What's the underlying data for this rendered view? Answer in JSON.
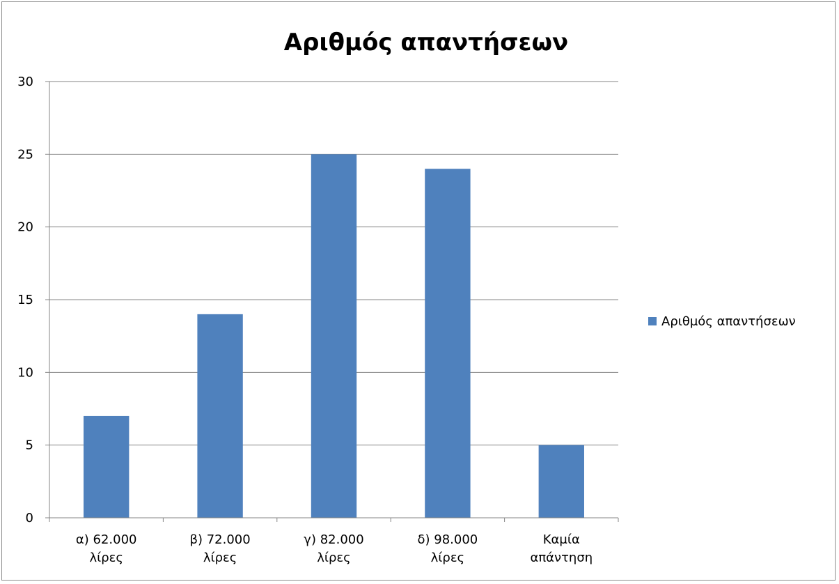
{
  "chart_data": {
    "type": "bar",
    "title": "Αριθμός απαντήσεων",
    "xlabel": "",
    "ylabel": "",
    "categories": [
      [
        "α) 62.000",
        "λίρες"
      ],
      [
        "β) 72.000",
        "λίρες"
      ],
      [
        "γ) 82.000",
        "λίρες"
      ],
      [
        "δ) 98.000",
        "λίρες"
      ],
      [
        "Καμία",
        "απάντηση"
      ]
    ],
    "series": [
      {
        "name": "Αριθμός απαντήσεων",
        "values": [
          7,
          14,
          25,
          24,
          5
        ],
        "color": "#4F81BD"
      }
    ],
    "ylim": [
      0,
      30
    ],
    "yticks": [
      "0",
      "5",
      "10",
      "15",
      "20",
      "25",
      "30"
    ],
    "grid": true,
    "legend": "right"
  }
}
